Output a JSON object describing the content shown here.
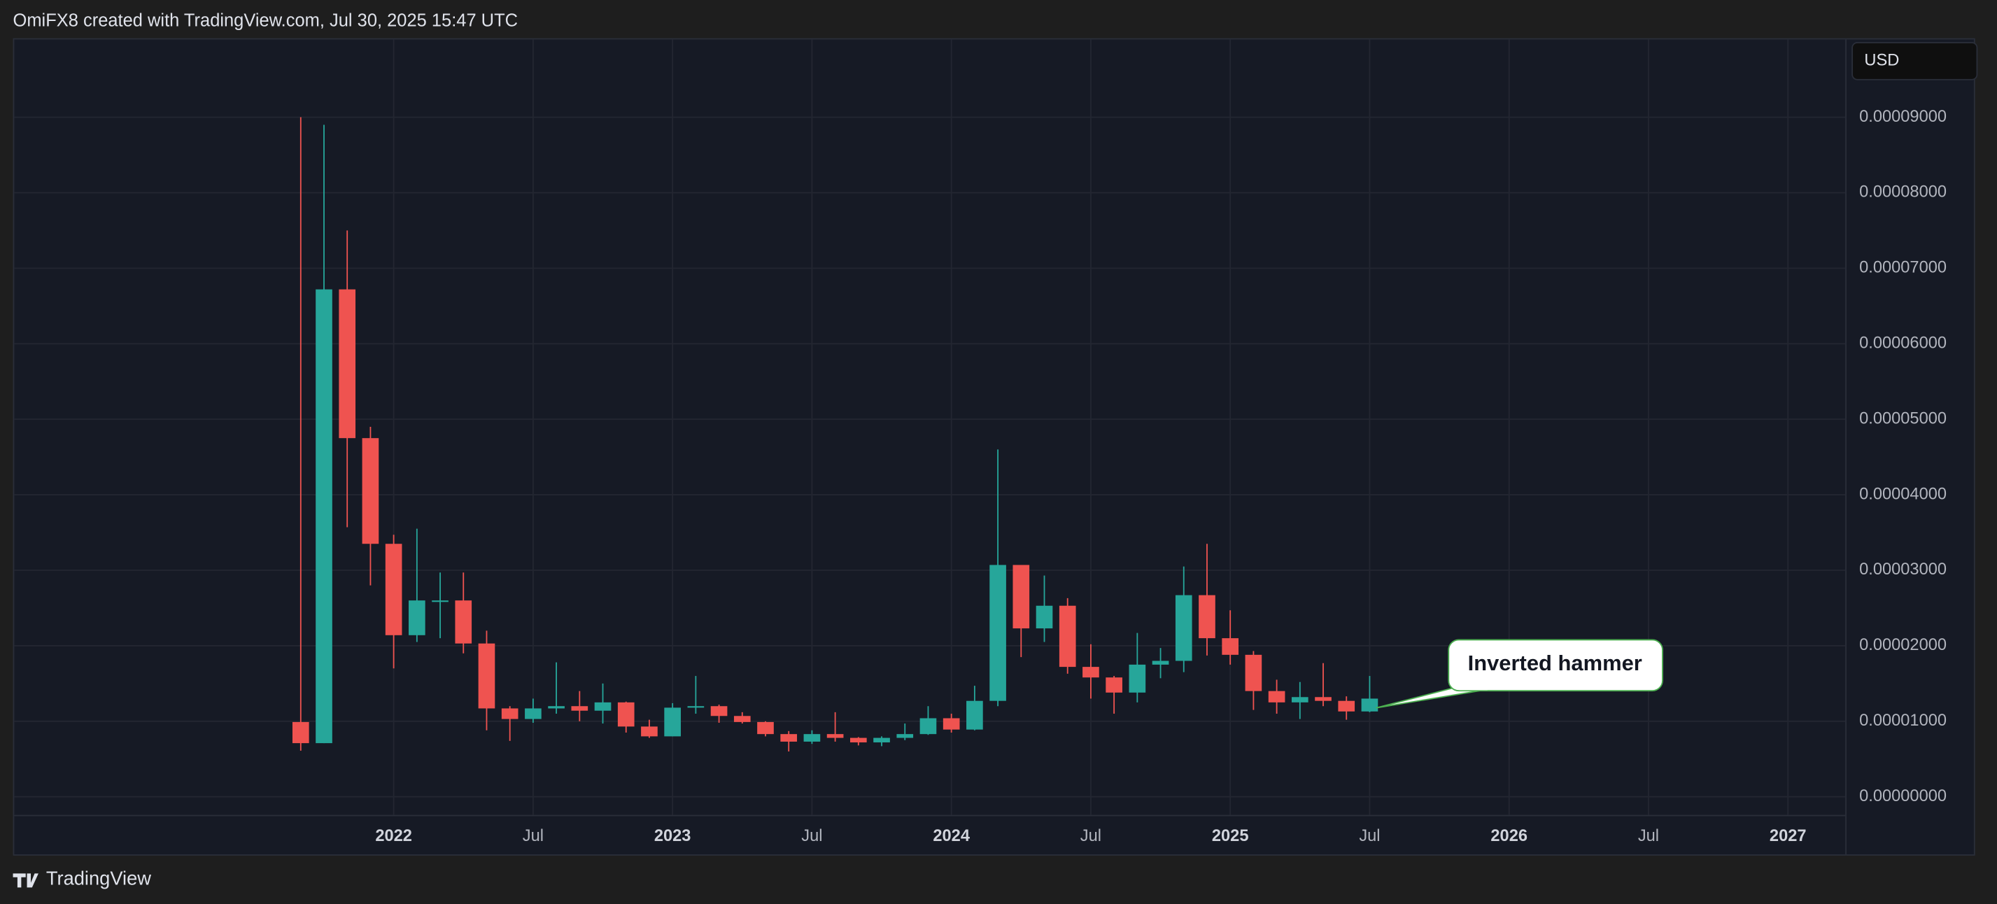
{
  "header": {
    "attribution": "OmiFX8 created with TradingView.com, Jul 30, 2025 15:47 UTC"
  },
  "footer": {
    "brand": "TradingView"
  },
  "chart_data": {
    "type": "candlestick",
    "currency": "USD",
    "x": [
      "2021-09",
      "2021-10",
      "2021-11",
      "2021-12",
      "2022-01",
      "2022-02",
      "2022-03",
      "2022-04",
      "2022-05",
      "2022-06",
      "2022-07",
      "2022-08",
      "2022-09",
      "2022-10",
      "2022-11",
      "2022-12",
      "2023-01",
      "2023-02",
      "2023-03",
      "2023-04",
      "2023-05",
      "2023-06",
      "2023-07",
      "2023-08",
      "2023-09",
      "2023-10",
      "2023-11",
      "2023-12",
      "2024-01",
      "2024-02",
      "2024-03",
      "2024-04",
      "2024-05",
      "2024-06",
      "2024-07",
      "2024-08",
      "2024-09",
      "2024-10",
      "2024-11",
      "2024-12",
      "2025-01",
      "2025-02",
      "2025-03",
      "2025-04",
      "2025-05",
      "2025-06",
      "2025-07"
    ],
    "open": [
      9.9e-06,
      7.1e-06,
      6.72e-05,
      4.75e-05,
      3.35e-05,
      2.14e-05,
      2.58e-05,
      2.6e-05,
      2.03e-05,
      1.17e-05,
      1.03e-05,
      1.17e-05,
      1.2e-05,
      1.14e-05,
      1.25e-05,
      9.3e-06,
      8e-06,
      1.18e-05,
      1.2e-05,
      1.07e-05,
      9.9e-06,
      8.3e-06,
      7.3e-06,
      8.3e-06,
      7.8e-06,
      7.2e-06,
      7.8e-06,
      8.3e-06,
      1.04e-05,
      8.9e-06,
      1.27e-05,
      3.07e-05,
      2.23e-05,
      2.53e-05,
      1.72e-05,
      1.58e-05,
      1.38e-05,
      1.75e-05,
      1.8e-05,
      2.67e-05,
      2.1e-05,
      1.88e-05,
      1.4e-05,
      1.25e-05,
      1.32e-05,
      1.27e-05,
      1.13e-05
    ],
    "high": [
      9e-05,
      8.9e-05,
      7.5e-05,
      4.9e-05,
      3.47e-05,
      3.55e-05,
      2.97e-05,
      2.97e-05,
      2.2e-05,
      1.2e-05,
      1.3e-05,
      1.78e-05,
      1.4e-05,
      1.5e-05,
      1.26e-05,
      1.02e-05,
      1.24e-05,
      1.6e-05,
      1.22e-05,
      1.12e-05,
      1e-05,
      8.7e-06,
      8.8e-06,
      1.12e-05,
      7.9e-06,
      8e-06,
      9.7e-06,
      1.2e-05,
      1.1e-05,
      1.47e-05,
      4.6e-05,
      3.07e-05,
      2.93e-05,
      2.63e-05,
      2.02e-05,
      1.6e-05,
      2.17e-05,
      1.97e-05,
      3.05e-05,
      3.35e-05,
      2.47e-05,
      1.93e-05,
      1.55e-05,
      1.52e-05,
      1.77e-05,
      1.33e-05,
      1.6e-05
    ],
    "low": [
      6.1e-06,
      7.1e-06,
      3.57e-05,
      2.8e-05,
      1.7e-05,
      2.05e-05,
      2.1e-05,
      1.9e-05,
      8.8e-06,
      7.4e-06,
      9.8e-06,
      1.1e-05,
      1e-05,
      9.7e-06,
      8.5e-06,
      7.8e-06,
      8e-06,
      1.1e-05,
      9.8e-06,
      9.7e-06,
      8e-06,
      6e-06,
      7e-06,
      7.3e-06,
      6.8e-06,
      6.7e-06,
      7.5e-06,
      8.2e-06,
      8.5e-06,
      8.8e-06,
      1.2e-05,
      1.85e-05,
      2.05e-05,
      1.63e-05,
      1.3e-05,
      1.1e-05,
      1.25e-05,
      1.57e-05,
      1.65e-05,
      1.87e-05,
      1.75e-05,
      1.15e-05,
      1.1e-05,
      1.03e-05,
      1.2e-05,
      1.02e-05,
      1.12e-05
    ],
    "close": [
      7.1e-06,
      6.72e-05,
      4.75e-05,
      3.35e-05,
      2.14e-05,
      2.6e-05,
      2.6e-05,
      2.03e-05,
      1.17e-05,
      1.03e-05,
      1.17e-05,
      1.2e-05,
      1.14e-05,
      1.25e-05,
      9.3e-06,
      8e-06,
      1.18e-05,
      1.2e-05,
      1.07e-05,
      9.9e-06,
      8.3e-06,
      7.3e-06,
      8.3e-06,
      7.8e-06,
      7.2e-06,
      7.8e-06,
      8.3e-06,
      1.04e-05,
      8.9e-06,
      1.27e-05,
      3.07e-05,
      2.23e-05,
      2.53e-05,
      1.72e-05,
      1.58e-05,
      1.38e-05,
      1.75e-05,
      1.8e-05,
      2.67e-05,
      2.1e-05,
      1.88e-05,
      1.4e-05,
      1.25e-05,
      1.32e-05,
      1.27e-05,
      1.13e-05,
      1.3e-05
    ],
    "up_color": "#26a69a",
    "down_color": "#ef5350",
    "grid": true,
    "ylim": [
      -2.4e-06,
      0.0001003
    ],
    "yticks": [
      {
        "value": 0,
        "label": "0.00000000"
      },
      {
        "value": 1e-05,
        "label": "0.00001000"
      },
      {
        "value": 2e-05,
        "label": "0.00002000"
      },
      {
        "value": 3e-05,
        "label": "0.00003000"
      },
      {
        "value": 4e-05,
        "label": "0.00004000"
      },
      {
        "value": 5e-05,
        "label": "0.00005000"
      },
      {
        "value": 6e-05,
        "label": "0.00006000"
      },
      {
        "value": 7e-05,
        "label": "0.00007000"
      },
      {
        "value": 8e-05,
        "label": "0.00008000"
      },
      {
        "value": 9e-05,
        "label": "0.00009000"
      }
    ],
    "xlim": [
      "2020-09",
      "2027-03"
    ],
    "xticks": [
      {
        "value": "2022-01",
        "label": "2022"
      },
      {
        "value": "2022-07",
        "label": "Jul"
      },
      {
        "value": "2023-01",
        "label": "2023"
      },
      {
        "value": "2023-07",
        "label": "Jul"
      },
      {
        "value": "2024-01",
        "label": "2024"
      },
      {
        "value": "2024-07",
        "label": "Jul"
      },
      {
        "value": "2025-01",
        "label": "2025"
      },
      {
        "value": "2025-07",
        "label": "Jul"
      },
      {
        "value": "2026-01",
        "label": "2026"
      },
      {
        "value": "2026-07",
        "label": "Jul"
      },
      {
        "value": "2027-01",
        "label": "2027"
      }
    ],
    "annotation": {
      "text": "Inverted hammer",
      "x": "2025-07"
    }
  }
}
